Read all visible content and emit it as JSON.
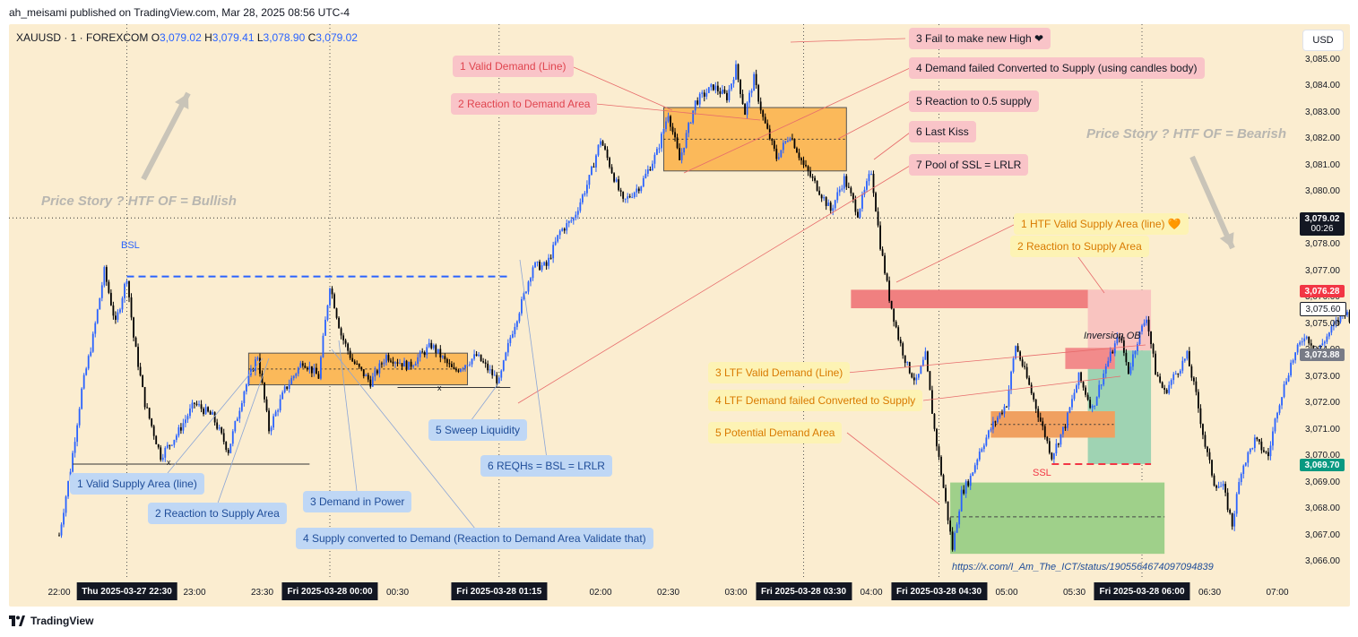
{
  "header": {
    "text": "ah_meisami published on TradingView.com, Mar 28, 2025 08:56 UTC-4"
  },
  "symbol": {
    "name": "XAUUSD · 1 · FOREXCOM",
    "o_label": "O",
    "o": "3,079.02",
    "h_label": "H",
    "h": "3,079.41",
    "l_label": "L",
    "l": "3,078.90",
    "c_label": "C",
    "c": "3,079.02"
  },
  "currency_button": "USD",
  "footer": {
    "logo_text": "TradingView",
    "logo_icon": "tradingview-icon"
  },
  "link_text": "https://x.com/I_Am_The_ICT/status/1905564674097094839",
  "stories": {
    "left": "Price Story ? HTF OF = Bullish",
    "right": "Price Story ? HTF OF = Bearish"
  },
  "labels": {
    "bsl": "BSL",
    "ssl": "SSL",
    "inversion_ob": "Inversion OB",
    "x1": "x",
    "x2": "x"
  },
  "notes_left": [
    {
      "text": "1 Valid Demand (Line)",
      "style": "pinkred"
    },
    {
      "text": "2 Reaction to Demand Area",
      "style": "pinkred"
    },
    {
      "text": "1 Valid Supply Area (line)",
      "style": "blue"
    },
    {
      "text": "2 Reaction to Supply Area",
      "style": "blue"
    },
    {
      "text": "3 Demand in Power",
      "style": "blue"
    },
    {
      "text": "4 Supply converted to Demand (Reaction to Demand Area Validate that)",
      "style": "blue"
    },
    {
      "text": "5 Sweep Liquidity",
      "style": "blue"
    },
    {
      "text": "6 REQHs = BSL = LRLR",
      "style": "blue"
    }
  ],
  "notes_right": [
    {
      "text": "3 Fail to make new High ❤",
      "style": "pink"
    },
    {
      "text": "4 Demand failed Converted to Supply (using candles body)",
      "style": "pink"
    },
    {
      "text": "5 Reaction to 0.5 supply",
      "style": "pink"
    },
    {
      "text": "6 Last Kiss",
      "style": "pink"
    },
    {
      "text": "7 Pool of SSL = LRLR",
      "style": "pink"
    },
    {
      "text": "1 HTF Valid Supply Area (line) 🧡",
      "style": "yellow"
    },
    {
      "text": "2 Reaction to Supply Area",
      "style": "yellow"
    },
    {
      "text": "3 LTF Valid Demand (Line)",
      "style": "yellow"
    },
    {
      "text": "4 LTF Demand failed Converted to Supply",
      "style": "yellow"
    },
    {
      "text": "5 Potential Demand Area",
      "style": "yellow"
    }
  ],
  "price_tags": [
    {
      "text": "3,079.02",
      "sub": "00:26",
      "color": "#131722"
    },
    {
      "text": "3,076.28",
      "color": "#f23645"
    },
    {
      "text": "3,075.60",
      "color": "#ffffff"
    },
    {
      "text": "3,073.88",
      "color": "#787b86"
    },
    {
      "text": "3,069.70",
      "color": "#089981"
    }
  ],
  "chart_data": {
    "type": "candlestick",
    "title": "",
    "ylabel": "",
    "xlabel": "",
    "ylim": [
      3065.7,
      3085.6
    ],
    "y_ticks": [
      "3,085.00",
      "3,084.00",
      "3,083.00",
      "3,082.00",
      "3,081.00",
      "3,080.00",
      "3,079.00",
      "3,078.00",
      "3,077.00",
      "3,076.00",
      "3,075.00",
      "3,074.00",
      "3,073.00",
      "3,072.00",
      "3,071.00",
      "3,070.00",
      "3,069.00",
      "3,068.00",
      "3,067.00",
      "3,066.00"
    ],
    "y_tick_values": [
      3085,
      3084,
      3083,
      3082,
      3081,
      3080,
      3079,
      3078,
      3077,
      3076,
      3075,
      3074,
      3073,
      3072,
      3071,
      3070,
      3069,
      3068,
      3067,
      3066
    ],
    "x_ticks": [
      {
        "label": "22:00",
        "t": 0
      },
      {
        "label": "23:00",
        "t": 60
      },
      {
        "label": "23:30",
        "t": 90
      },
      {
        "label": "00:30",
        "t": 150
      },
      {
        "label": "02:00",
        "t": 240
      },
      {
        "label": "02:30",
        "t": 270
      },
      {
        "label": "03:00",
        "t": 300
      },
      {
        "label": "04:00",
        "t": 360
      },
      {
        "label": "05:00",
        "t": 420
      },
      {
        "label": "05:30",
        "t": 450
      },
      {
        "label": "06:30",
        "t": 510
      },
      {
        "label": "07:00",
        "t": 540
      }
    ],
    "x_highlight": [
      {
        "label": "Thu 2025-03-27   22:30",
        "t": 30
      },
      {
        "label": "Fri 2025-03-28   00:00",
        "t": 120
      },
      {
        "label": "Fri 2025-03-28   01:15",
        "t": 195
      },
      {
        "label": "Fri 2025-03-28   03:30",
        "t": 330
      },
      {
        "label": "Fri 2025-03-28   04:30",
        "t": 390
      },
      {
        "label": "Fri 2025-03-28   06:00",
        "t": 480
      }
    ],
    "price_path": [
      [
        0,
        3067.0
      ],
      [
        5,
        3069.5
      ],
      [
        10,
        3072.5
      ],
      [
        15,
        3074.5
      ],
      [
        20,
        3077.0
      ],
      [
        25,
        3075.0
      ],
      [
        30,
        3076.8
      ],
      [
        33,
        3074.5
      ],
      [
        38,
        3072.0
      ],
      [
        45,
        3070.0
      ],
      [
        52,
        3070.8
      ],
      [
        60,
        3072.0
      ],
      [
        68,
        3071.5
      ],
      [
        75,
        3070.2
      ],
      [
        82,
        3072.5
      ],
      [
        88,
        3073.8
      ],
      [
        93,
        3071.0
      ],
      [
        100,
        3072.5
      ],
      [
        108,
        3073.6
      ],
      [
        115,
        3073.0
      ],
      [
        120,
        3076.5
      ],
      [
        125,
        3074.6
      ],
      [
        130,
        3073.6
      ],
      [
        138,
        3072.8
      ],
      [
        145,
        3073.8
      ],
      [
        155,
        3073.4
      ],
      [
        165,
        3074.2
      ],
      [
        175,
        3073.2
      ],
      [
        185,
        3073.8
      ],
      [
        195,
        3072.8
      ],
      [
        200,
        3074.5
      ],
      [
        205,
        3075.8
      ],
      [
        210,
        3077.2
      ],
      [
        216,
        3077.2
      ],
      [
        222,
        3078.5
      ],
      [
        228,
        3079.0
      ],
      [
        235,
        3080.5
      ],
      [
        240,
        3082.0
      ],
      [
        245,
        3080.8
      ],
      [
        250,
        3079.6
      ],
      [
        258,
        3080.3
      ],
      [
        265,
        3081.5
      ],
      [
        270,
        3083.0
      ],
      [
        275,
        3081.2
      ],
      [
        282,
        3083.4
      ],
      [
        290,
        3084.0
      ],
      [
        296,
        3083.6
      ],
      [
        300,
        3084.7
      ],
      [
        304,
        3083.0
      ],
      [
        308,
        3084.3
      ],
      [
        312,
        3082.8
      ],
      [
        318,
        3081.3
      ],
      [
        324,
        3082.2
      ],
      [
        330,
        3081.0
      ],
      [
        336,
        3080.2
      ],
      [
        342,
        3079.3
      ],
      [
        348,
        3080.5
      ],
      [
        354,
        3079.2
      ],
      [
        360,
        3080.8
      ],
      [
        364,
        3078.0
      ],
      [
        368,
        3076.0
      ],
      [
        372,
        3074.5
      ],
      [
        376,
        3073.4
      ],
      [
        380,
        3072.8
      ],
      [
        384,
        3073.8
      ],
      [
        388,
        3071.0
      ],
      [
        392,
        3068.8
      ],
      [
        396,
        3066.5
      ],
      [
        400,
        3068.6
      ],
      [
        404,
        3069.2
      ],
      [
        408,
        3070.2
      ],
      [
        414,
        3071.2
      ],
      [
        420,
        3072.0
      ],
      [
        424,
        3074.2
      ],
      [
        428,
        3073.2
      ],
      [
        434,
        3071.6
      ],
      [
        440,
        3070.0
      ],
      [
        446,
        3071.2
      ],
      [
        452,
        3073.0
      ],
      [
        458,
        3071.8
      ],
      [
        464,
        3073.4
      ],
      [
        470,
        3074.6
      ],
      [
        474,
        3073.2
      ],
      [
        478,
        3074.4
      ],
      [
        482,
        3075.3
      ],
      [
        486,
        3073.2
      ],
      [
        490,
        3072.4
      ],
      [
        494,
        3073.0
      ],
      [
        500,
        3073.8
      ],
      [
        504,
        3072.3
      ],
      [
        508,
        3070.4
      ],
      [
        512,
        3069.0
      ],
      [
        516,
        3068.8
      ],
      [
        520,
        3067.4
      ],
      [
        524,
        3069.5
      ],
      [
        530,
        3070.6
      ],
      [
        536,
        3070.0
      ],
      [
        540,
        3071.8
      ],
      [
        546,
        3073.5
      ],
      [
        552,
        3074.6
      ],
      [
        558,
        3074.0
      ],
      [
        564,
        3074.8
      ],
      [
        570,
        3075.5
      ],
      [
        574,
        3075.0
      ],
      [
        578,
        3076.4
      ]
    ],
    "xlim": [
      -3,
      582
    ],
    "dotted_price_line": 3079.02
  }
}
